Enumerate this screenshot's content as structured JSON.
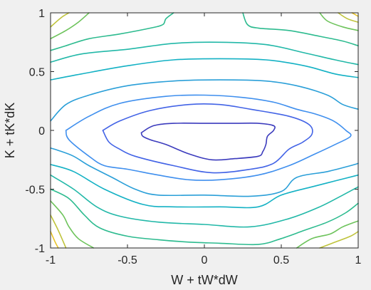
{
  "chart_data": {
    "type": "contour",
    "xlabel": "W + tW*dW",
    "ylabel": "K + tK*dK",
    "xlim": [
      -1,
      1
    ],
    "ylim": [
      -1,
      1
    ],
    "xticks": [
      -1,
      -0.5,
      0,
      0.5,
      1
    ],
    "yticks": [
      -1,
      -0.5,
      0,
      0.5,
      1
    ],
    "xtick_labels": [
      "-1",
      "-0.5",
      "0",
      "0.5",
      "1"
    ],
    "ytick_labels": [
      "-1",
      "-0.5",
      "0",
      "0.5",
      "1"
    ],
    "grid": false,
    "colormap": "parula",
    "background": "#ffffff",
    "figure_background": "#f0f0f0",
    "contours": [
      {
        "color": "#3b3bbd",
        "points": [
          [
            -0.41,
            -0.02
          ],
          [
            -0.33,
            0.04
          ],
          [
            -0.2,
            0.06
          ],
          [
            0,
            0.06
          ],
          [
            0.2,
            0.06
          ],
          [
            0.35,
            0.06
          ],
          [
            0.45,
            0.04
          ],
          [
            0.45,
            0.0
          ],
          [
            0.41,
            -0.05
          ],
          [
            0.4,
            -0.12
          ],
          [
            0.38,
            -0.18
          ],
          [
            0.35,
            -0.22
          ],
          [
            0.2,
            -0.24
          ],
          [
            0.05,
            -0.25
          ],
          [
            -0.1,
            -0.2
          ],
          [
            -0.25,
            -0.12
          ],
          [
            -0.35,
            -0.08
          ],
          [
            -0.4,
            -0.05
          ],
          [
            -0.41,
            -0.02
          ]
        ]
      },
      {
        "color": "#4263e6",
        "points": [
          [
            -0.66,
            0.0
          ],
          [
            -0.55,
            0.08
          ],
          [
            -0.35,
            0.17
          ],
          [
            -0.1,
            0.22
          ],
          [
            0.1,
            0.22
          ],
          [
            0.3,
            0.18
          ],
          [
            0.55,
            0.12
          ],
          [
            0.68,
            0.05
          ],
          [
            0.7,
            -0.03
          ],
          [
            0.64,
            -0.1
          ],
          [
            0.55,
            -0.16
          ],
          [
            0.45,
            -0.28
          ],
          [
            0.3,
            -0.33
          ],
          [
            0.05,
            -0.36
          ],
          [
            -0.2,
            -0.3
          ],
          [
            -0.45,
            -0.22
          ],
          [
            -0.55,
            -0.16
          ],
          [
            -0.62,
            -0.1
          ],
          [
            -0.66,
            0.0
          ]
        ]
      },
      {
        "color": "#3f8fee",
        "points": [
          [
            -0.9,
            0.0
          ],
          [
            -0.75,
            0.12
          ],
          [
            -0.55,
            0.23
          ],
          [
            -0.25,
            0.29
          ],
          [
            0,
            0.3
          ],
          [
            0.25,
            0.28
          ],
          [
            0.45,
            0.24
          ],
          [
            0.6,
            0.18
          ],
          [
            0.72,
            0.14
          ],
          [
            0.84,
            0.08
          ],
          [
            0.92,
            0.0
          ],
          [
            0.95,
            -0.05
          ],
          [
            0.85,
            -0.12
          ],
          [
            0.72,
            -0.2
          ],
          [
            0.55,
            -0.3
          ],
          [
            0.35,
            -0.38
          ],
          [
            0.1,
            -0.42
          ],
          [
            -0.1,
            -0.42
          ],
          [
            -0.3,
            -0.38
          ],
          [
            -0.5,
            -0.33
          ],
          [
            -0.65,
            -0.3
          ],
          [
            -0.75,
            -0.22
          ],
          [
            -0.88,
            -0.08
          ],
          [
            -0.9,
            0.0
          ]
        ]
      },
      {
        "color": "#2a9fd8",
        "points": [
          [
            -1,
            0.08
          ],
          [
            -0.9,
            0.22
          ],
          [
            -0.75,
            0.3
          ],
          [
            -0.5,
            0.38
          ],
          [
            -0.2,
            0.42
          ],
          [
            0.1,
            0.43
          ],
          [
            0.4,
            0.42
          ],
          [
            0.6,
            0.38
          ],
          [
            0.8,
            0.3
          ],
          [
            0.9,
            0.22
          ],
          [
            1,
            0.18
          ]
        ]
      },
      {
        "color": "#2a9fd8",
        "points": [
          [
            -1,
            -0.15
          ],
          [
            -0.95,
            -0.17
          ],
          [
            -0.85,
            -0.22
          ],
          [
            -0.75,
            -0.3
          ],
          [
            -0.6,
            -0.4
          ],
          [
            -0.45,
            -0.5
          ],
          [
            -0.3,
            -0.55
          ],
          [
            0,
            -0.55
          ],
          [
            0.3,
            -0.56
          ],
          [
            0.5,
            -0.52
          ],
          [
            0.6,
            -0.4
          ],
          [
            0.8,
            -0.35
          ],
          [
            0.95,
            -0.3
          ],
          [
            1,
            -0.28
          ]
        ]
      },
      {
        "color": "#13b1c4",
        "points": [
          [
            -1,
            0.43
          ],
          [
            -0.8,
            0.48
          ],
          [
            -0.5,
            0.55
          ],
          [
            -0.2,
            0.6
          ],
          [
            0.1,
            0.61
          ],
          [
            0.4,
            0.6
          ],
          [
            0.65,
            0.55
          ],
          [
            0.85,
            0.48
          ],
          [
            1,
            0.45
          ]
        ]
      },
      {
        "color": "#13b1c4",
        "points": [
          [
            -1,
            -0.29
          ],
          [
            -0.85,
            -0.35
          ],
          [
            -0.65,
            -0.5
          ],
          [
            -0.4,
            -0.63
          ],
          [
            -0.2,
            -0.65
          ],
          [
            0.1,
            -0.65
          ],
          [
            0.35,
            -0.65
          ],
          [
            0.5,
            -0.55
          ],
          [
            0.7,
            -0.48
          ],
          [
            0.85,
            -0.43
          ],
          [
            1,
            -0.38
          ]
        ]
      },
      {
        "color": "#22b8a8",
        "points": [
          [
            -1,
            0.58
          ],
          [
            -0.8,
            0.65
          ],
          [
            -0.5,
            0.69
          ],
          [
            -0.2,
            0.74
          ],
          [
            0.1,
            0.75
          ],
          [
            0.4,
            0.73
          ],
          [
            0.65,
            0.66
          ],
          [
            0.85,
            0.6
          ],
          [
            1,
            0.56
          ]
        ]
      },
      {
        "color": "#22b8a8",
        "points": [
          [
            -1,
            -0.38
          ],
          [
            -0.85,
            -0.5
          ],
          [
            -0.7,
            -0.65
          ],
          [
            -0.55,
            -0.73
          ],
          [
            -0.3,
            -0.78
          ],
          [
            0,
            -0.8
          ],
          [
            0.3,
            -0.82
          ],
          [
            0.55,
            -0.75
          ],
          [
            0.75,
            -0.65
          ],
          [
            0.9,
            -0.55
          ],
          [
            1,
            -0.48
          ]
        ]
      },
      {
        "color": "#2dbb8f",
        "points": [
          [
            -1,
            0.68
          ],
          [
            -0.9,
            0.72
          ],
          [
            -0.75,
            0.78
          ],
          [
            -0.55,
            0.82
          ],
          [
            -0.35,
            0.87
          ],
          [
            -0.27,
            0.9
          ],
          [
            -0.25,
            0.95
          ],
          [
            -0.2,
            1
          ]
        ]
      },
      {
        "color": "#2dbb8f",
        "points": [
          [
            0.25,
            1
          ],
          [
            0.28,
            0.9
          ],
          [
            0.35,
            0.87
          ],
          [
            0.55,
            0.85
          ],
          [
            0.75,
            0.8
          ],
          [
            0.9,
            0.76
          ],
          [
            1,
            0.72
          ]
        ]
      },
      {
        "color": "#2dbb8f",
        "points": [
          [
            -1,
            -0.5
          ],
          [
            -0.88,
            -0.58
          ],
          [
            -0.78,
            -0.72
          ],
          [
            -0.68,
            -0.83
          ],
          [
            -0.5,
            -0.9
          ],
          [
            -0.3,
            -0.93
          ],
          [
            -0.1,
            -0.95
          ],
          [
            0.1,
            -0.96
          ],
          [
            0.35,
            -0.97
          ],
          [
            0.5,
            -0.92
          ],
          [
            0.65,
            -0.85
          ],
          [
            0.8,
            -0.78
          ],
          [
            0.92,
            -0.7
          ],
          [
            1,
            -0.62
          ]
        ]
      },
      {
        "color": "#6dc35b",
        "points": [
          [
            -1,
            0.78
          ],
          [
            -0.9,
            0.85
          ],
          [
            -0.82,
            0.92
          ],
          [
            -0.75,
            1
          ]
        ]
      },
      {
        "color": "#6dc35b",
        "points": [
          [
            0.75,
            1
          ],
          [
            0.8,
            0.93
          ],
          [
            0.9,
            0.88
          ],
          [
            1,
            0.85
          ]
        ]
      },
      {
        "color": "#6dc35b",
        "points": [
          [
            -1,
            -0.6
          ],
          [
            -0.92,
            -0.72
          ],
          [
            -0.88,
            -0.82
          ],
          [
            -0.82,
            -0.92
          ],
          [
            -0.72,
            -1
          ]
        ]
      },
      {
        "color": "#6dc35b",
        "points": [
          [
            0.6,
            -1
          ],
          [
            0.7,
            -0.92
          ],
          [
            0.82,
            -0.88
          ],
          [
            0.9,
            -0.82
          ],
          [
            1,
            -0.77
          ]
        ]
      },
      {
        "color": "#bfc33b",
        "points": [
          [
            -1,
            0.88
          ],
          [
            -0.93,
            0.96
          ],
          [
            -0.88,
            1
          ]
        ]
      },
      {
        "color": "#bfc33b",
        "points": [
          [
            0.87,
            1
          ],
          [
            0.93,
            0.95
          ],
          [
            1,
            0.92
          ]
        ]
      },
      {
        "color": "#bfc33b",
        "points": [
          [
            -1,
            -0.72
          ],
          [
            -0.95,
            -0.85
          ],
          [
            -0.9,
            -1
          ]
        ]
      },
      {
        "color": "#bfc33b",
        "points": [
          [
            0.75,
            -1
          ],
          [
            0.85,
            -0.95
          ],
          [
            0.95,
            -0.9
          ],
          [
            1,
            -0.86
          ]
        ]
      },
      {
        "color": "#e8c32a",
        "points": [
          [
            0.96,
            1
          ],
          [
            1,
            0.97
          ]
        ]
      },
      {
        "color": "#e8c32a",
        "points": [
          [
            -1,
            -0.86
          ],
          [
            -0.97,
            -0.95
          ],
          [
            -0.95,
            -1
          ]
        ]
      }
    ]
  }
}
